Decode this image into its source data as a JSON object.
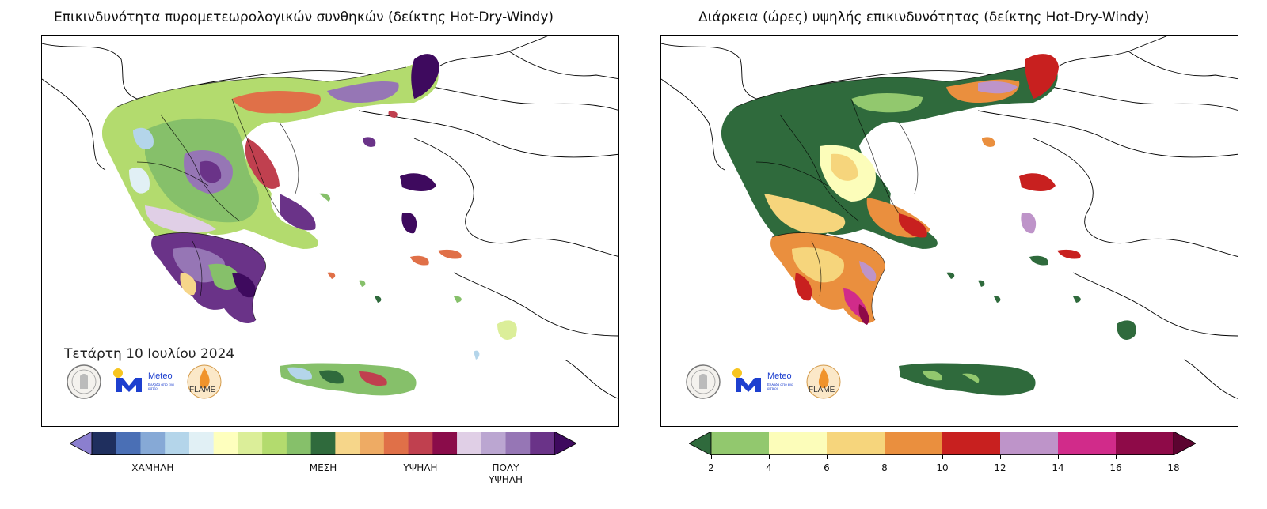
{
  "left_panel": {
    "title": "Επικινδυνότητα πυρομετεωρολογικών συνθηκών (δείκτης Hot-Dry-Windy)",
    "date": "Τετάρτη 10 Ιουλίου 2024",
    "colorbar": {
      "colors": [
        "#1f2f5e",
        "#4a6fb5",
        "#86a9d6",
        "#b4d5ea",
        "#e1f0f5",
        "#feffbe",
        "#dbee99",
        "#b3db6e",
        "#86c06a",
        "#2f6a3c",
        "#f6d68a",
        "#eeab64",
        "#e07048",
        "#c0404f",
        "#8a0c4a",
        "#e0cfe6",
        "#bba6d1",
        "#9676b5",
        "#6a3388"
      ],
      "extend_low_color": "#8b7fcf",
      "extend_high_color": "#3e0a5e",
      "labels": [
        {
          "text": "ΧΑΜΗΛΗ",
          "pos_index": 2.5
        },
        {
          "text": "ΜΕΣΗ",
          "pos_index": 9.5
        },
        {
          "text": "ΥΨΗΛΗ",
          "pos_index": 13.5
        },
        {
          "text": "ΠΟΛΥ\nΥΨΗΛΗ",
          "pos_index": 17.0
        }
      ]
    }
  },
  "right_panel": {
    "title": "Διάρκεια (ώρες) υψηλής επικινδυνότητας (δείκτης Hot-Dry-Windy)",
    "colorbar": {
      "colors": [
        "#92c86e",
        "#fcfdba",
        "#f6d57c",
        "#ea8f3e",
        "#c8201f",
        "#be94c9",
        "#d12b8a",
        "#8e0a48"
      ],
      "extend_low_color": "#2f6a3c",
      "extend_high_color": "#5c0430",
      "ticks": [
        "2",
        "4",
        "6",
        "8",
        "10",
        "12",
        "14",
        "16",
        "18"
      ]
    }
  },
  "logos": {
    "meteo_name": "Meteo",
    "meteo_sub": "Ελλάδα από ένα αστέρι",
    "flame_text": "FLAME"
  }
}
